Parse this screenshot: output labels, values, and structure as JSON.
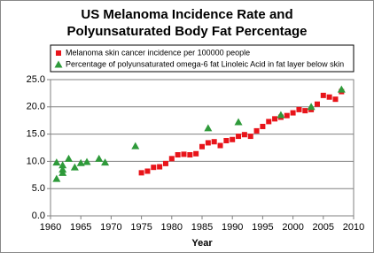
{
  "chart_data": {
    "type": "scatter",
    "title": "US Melanoma Incidence Rate and",
    "subtitle": "Polyunsaturated Body Fat Percentage",
    "xlabel": "Year",
    "xlim": [
      1960,
      2010
    ],
    "xticks": [
      1960,
      1965,
      1970,
      1975,
      1980,
      1985,
      1990,
      1995,
      2000,
      2005,
      2010
    ],
    "ylim": [
      0,
      25
    ],
    "yticks": [
      {
        "value": 0,
        "label": "0.0"
      },
      {
        "value": 5,
        "label": "5.0"
      },
      {
        "value": 10,
        "label": "10.0"
      },
      {
        "value": 15,
        "label": "15.0"
      },
      {
        "value": 20,
        "label": "20.0"
      },
      {
        "value": 25,
        "label": "25.0"
      }
    ],
    "grid": true,
    "legend": "top",
    "series": [
      {
        "name": "Melanoma skin cancer incidence per 100000 people",
        "color": "#e8141a",
        "marker": "square",
        "x": [
          1975,
          1976,
          1977,
          1978,
          1979,
          1980,
          1981,
          1982,
          1983,
          1984,
          1985,
          1986,
          1987,
          1988,
          1989,
          1990,
          1991,
          1992,
          1993,
          1994,
          1995,
          1996,
          1997,
          1998,
          1999,
          2000,
          2001,
          2002,
          2003,
          2004,
          2005,
          2006,
          2007,
          2008
        ],
        "values": [
          7.9,
          8.2,
          8.9,
          9.0,
          9.6,
          10.5,
          11.2,
          11.3,
          11.2,
          11.4,
          12.7,
          13.4,
          13.6,
          12.9,
          13.8,
          14.0,
          14.6,
          14.9,
          14.6,
          15.6,
          16.4,
          17.3,
          17.8,
          18.1,
          18.4,
          18.9,
          19.5,
          19.3,
          19.5,
          20.5,
          22.1,
          21.8,
          21.4,
          22.8
        ]
      },
      {
        "name": "Percentage of polyunsaturated omega-6 fat Linoleic Acid in fat layer below skin",
        "color": "#2e9a3a",
        "marker": "triangle",
        "x": [
          1961,
          1961,
          1962,
          1962,
          1962,
          1963,
          1964,
          1965,
          1966,
          1968,
          1969,
          1974,
          1986,
          1991,
          1998,
          2003,
          2008
        ],
        "values": [
          6.8,
          9.8,
          9.3,
          8.5,
          7.9,
          10.5,
          8.9,
          9.7,
          9.9,
          10.5,
          9.8,
          12.8,
          16.1,
          17.2,
          18.5,
          20.0,
          23.2
        ]
      }
    ]
  }
}
